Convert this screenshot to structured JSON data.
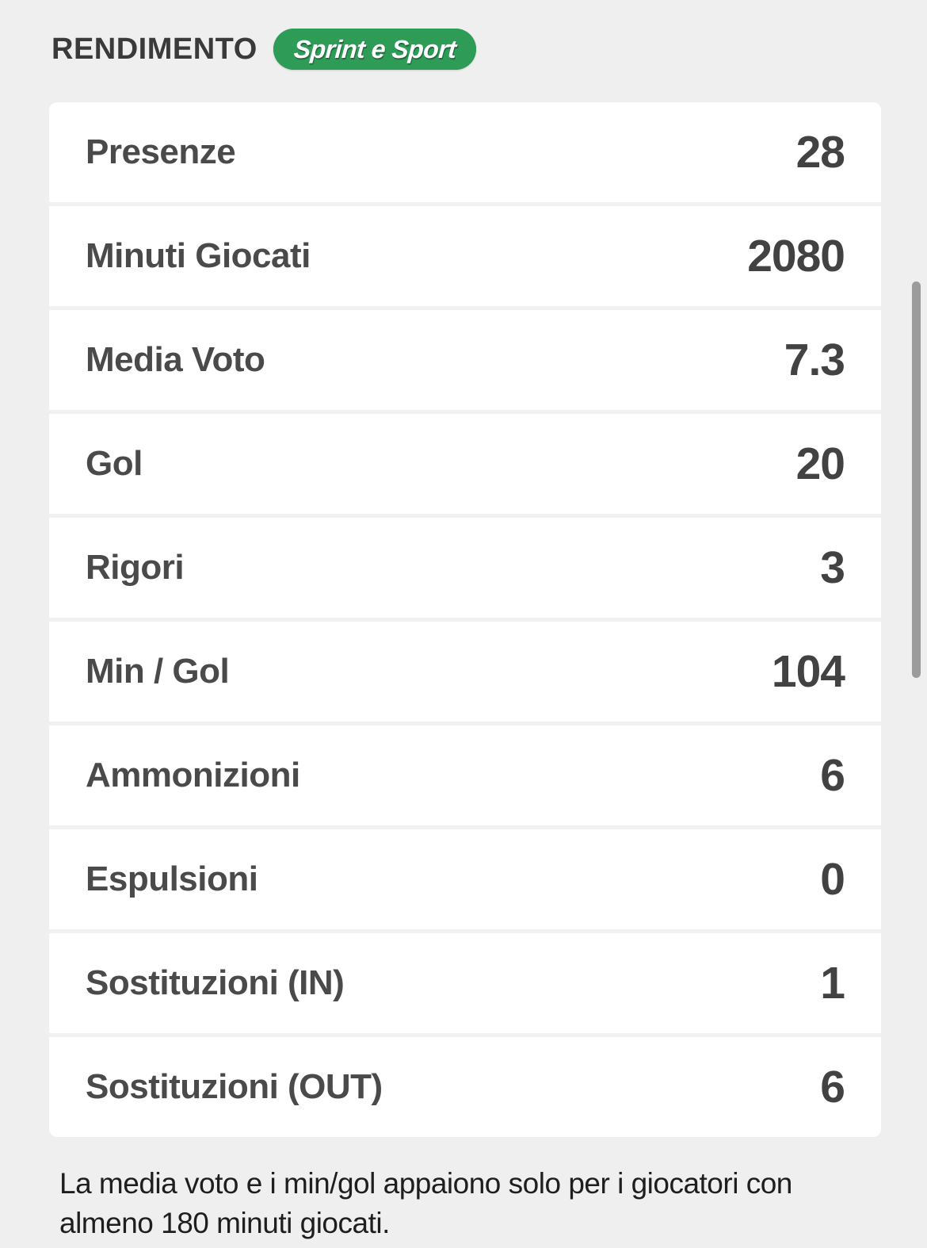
{
  "header": {
    "title": "RENDIMENTO",
    "logo_text": "Sprint e Sport"
  },
  "stats": [
    {
      "label": "Presenze",
      "value": "28"
    },
    {
      "label": "Minuti Giocati",
      "value": "2080"
    },
    {
      "label": "Media Voto",
      "value": "7.3"
    },
    {
      "label": "Gol",
      "value": "20"
    },
    {
      "label": "Rigori",
      "value": "3"
    },
    {
      "label": "Min / Gol",
      "value": "104"
    },
    {
      "label": "Ammonizioni",
      "value": "6"
    },
    {
      "label": "Espulsioni",
      "value": "0"
    },
    {
      "label": "Sostituzioni (IN)",
      "value": "1"
    },
    {
      "label": "Sostituzioni (OUT)",
      "value": "6"
    }
  ],
  "footnote": "La media voto e i min/gol appaiono solo per i giocatori con almeno 180 minuti giocati.",
  "colors": {
    "brand_green": "#2e9b57",
    "text_dark": "#4a4a4a",
    "background": "#efefef",
    "row_background": "#ffffff"
  }
}
